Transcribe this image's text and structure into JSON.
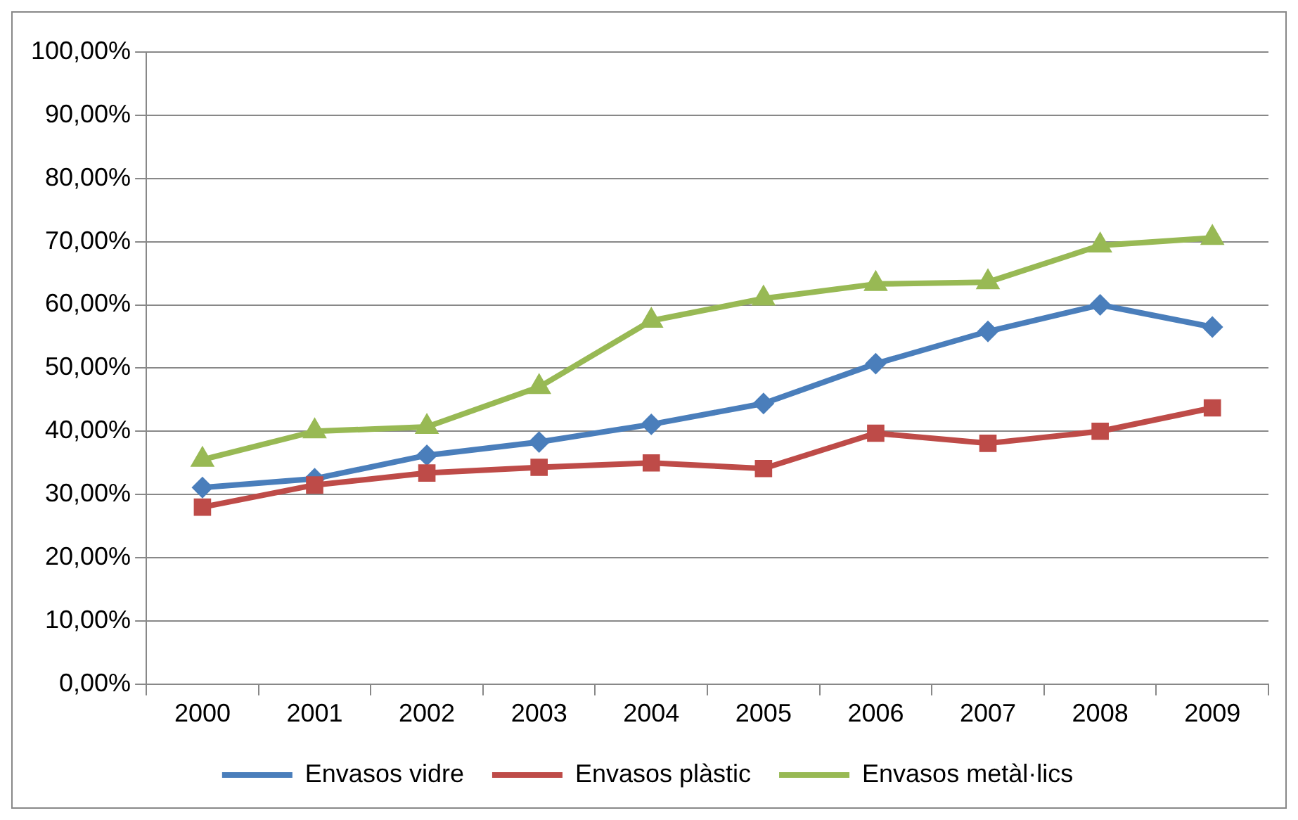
{
  "chart_data": {
    "type": "line",
    "categories": [
      "2000",
      "2001",
      "2002",
      "2003",
      "2004",
      "2005",
      "2006",
      "2007",
      "2008",
      "2009"
    ],
    "series": [
      {
        "name": "Envasos vidre",
        "color": "#4a7ebb",
        "marker": "diamond",
        "values": [
          31.1,
          32.5,
          36.2,
          38.3,
          41.1,
          44.4,
          50.7,
          55.8,
          60.0,
          56.5
        ]
      },
      {
        "name": "Envasos plàstic",
        "color": "#be4b48",
        "marker": "square",
        "values": [
          28.0,
          31.5,
          33.4,
          34.3,
          35.0,
          34.1,
          39.7,
          38.1,
          40.0,
          43.7
        ]
      },
      {
        "name": "Envasos metàl·lics",
        "color": "#98b954",
        "marker": "triangle",
        "values": [
          35.5,
          40.0,
          40.7,
          47.0,
          57.5,
          61.0,
          63.3,
          63.6,
          69.4,
          70.6
        ]
      }
    ],
    "ylim": [
      0,
      100
    ],
    "yticks": [
      {
        "value": 0,
        "label": "0,00%"
      },
      {
        "value": 10,
        "label": "10,00%"
      },
      {
        "value": 20,
        "label": "20,00%"
      },
      {
        "value": 30,
        "label": "30,00%"
      },
      {
        "value": 40,
        "label": "40,00%"
      },
      {
        "value": 50,
        "label": "50,00%"
      },
      {
        "value": 60,
        "label": "60,00%"
      },
      {
        "value": 70,
        "label": "70,00%"
      },
      {
        "value": 80,
        "label": "80,00%"
      },
      {
        "value": 90,
        "label": "90,00%"
      },
      {
        "value": 100,
        "label": "100,00%"
      }
    ],
    "grid": "y",
    "legend": "bottom",
    "line_style": "solid"
  }
}
